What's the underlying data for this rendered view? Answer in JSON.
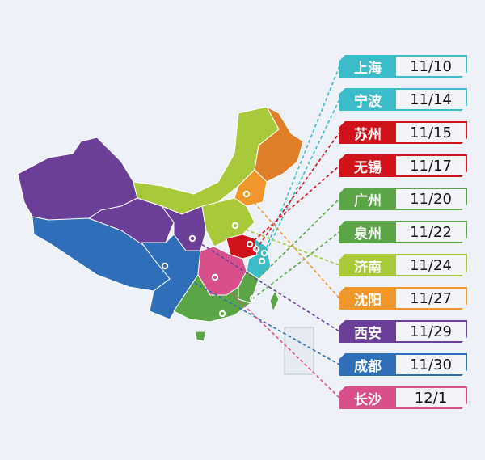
{
  "legend": [
    {
      "city": "上海",
      "date": "11/10",
      "color": "#3cbcc8",
      "point": [
        327,
        313
      ]
    },
    {
      "city": "宁波",
      "date": "11/14",
      "color": "#3cbcc8",
      "point": [
        324,
        323
      ]
    },
    {
      "city": "苏州",
      "date": "11/15",
      "color": "#d0121b",
      "point": [
        317,
        308
      ]
    },
    {
      "city": "无锡",
      "date": "11/17",
      "color": "#d0121b",
      "point": [
        309,
        302
      ]
    },
    {
      "city": "广州",
      "date": "11/20",
      "color": "#5aa545",
      "point": [
        275,
        388
      ]
    },
    {
      "city": "泉州",
      "date": "11/22",
      "color": "#5aa545",
      "point": [
        313,
        369
      ]
    },
    {
      "city": "济南",
      "date": "11/24",
      "color": "#a8c93a",
      "point": [
        291,
        279
      ]
    },
    {
      "city": "沈阳",
      "date": "11/27",
      "color": "#f0962a",
      "point": [
        305,
        240
      ]
    },
    {
      "city": "西安",
      "date": "11/29",
      "color": "#6b3f98",
      "point": [
        238,
        295
      ]
    },
    {
      "city": "成都",
      "date": "11/30",
      "color": "#2f6fba",
      "point": [
        204,
        329
      ]
    },
    {
      "city": "长沙",
      "date": "12/1",
      "color": "#d94f8c",
      "point": [
        266,
        343
      ]
    }
  ]
}
